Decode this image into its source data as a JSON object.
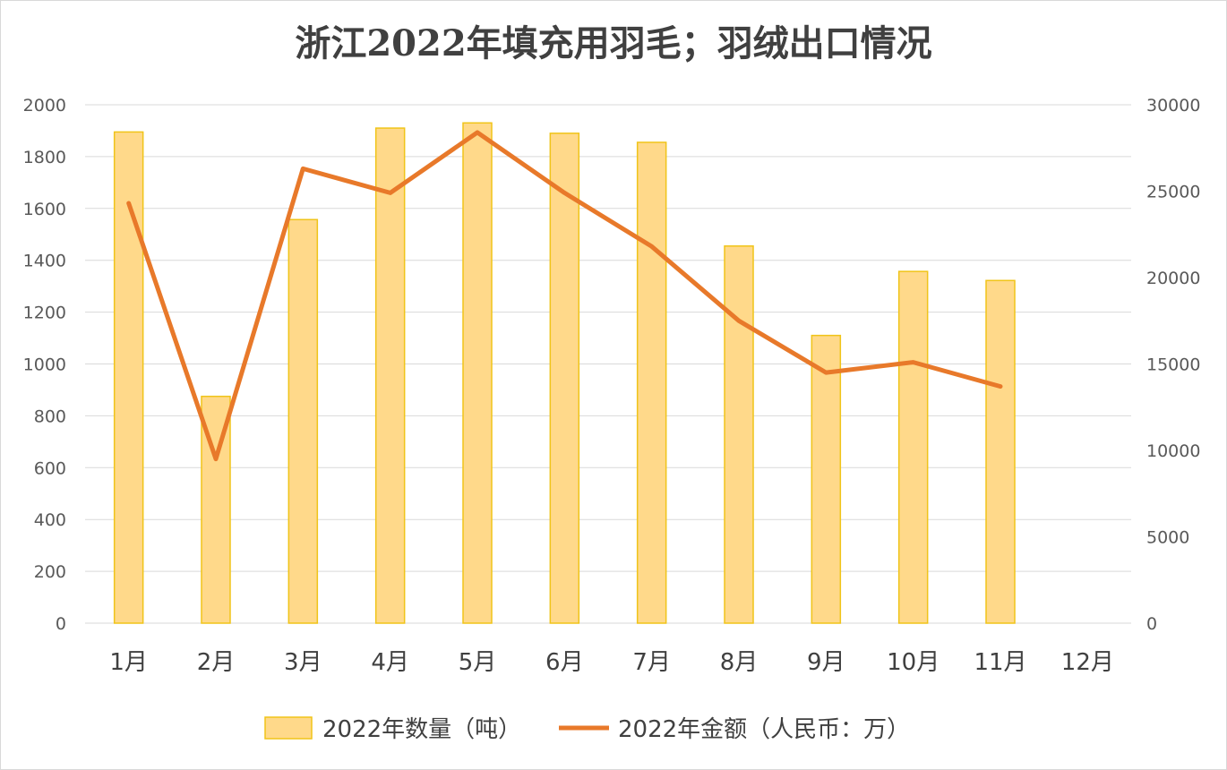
{
  "chart_data": {
    "type": "bar",
    "title": "浙江2022年填充用羽毛；羽绒出口情况",
    "categories": [
      "1月",
      "2月",
      "3月",
      "4月",
      "5月",
      "6月",
      "7月",
      "8月",
      "9月",
      "10月",
      "11月",
      "12月"
    ],
    "series": [
      {
        "name": "2022年数量（吨）",
        "type": "bar",
        "axis": "left",
        "color": "#ffd98a",
        "values": [
          1895,
          875,
          1557,
          1910,
          1930,
          1890,
          1855,
          1455,
          1110,
          1357,
          1322,
          null
        ]
      },
      {
        "name": "2022年金额（人民币：万）",
        "type": "line",
        "axis": "right",
        "color": "#e8792a",
        "values": [
          24300,
          9500,
          26300,
          24900,
          28400,
          24900,
          21800,
          17500,
          14500,
          15100,
          13700,
          null
        ]
      }
    ],
    "y_left": {
      "min": 0,
      "max": 2000,
      "step": 200,
      "ticks": [
        "0",
        "200",
        "400",
        "600",
        "800",
        "1000",
        "1200",
        "1400",
        "1600",
        "1800",
        "2000"
      ]
    },
    "y_right": {
      "min": 0,
      "max": 30000,
      "step": 5000,
      "ticks": [
        "0",
        "5000",
        "10000",
        "15000",
        "20000",
        "25000",
        "30000"
      ]
    },
    "grid": true,
    "legend_position": "bottom"
  }
}
